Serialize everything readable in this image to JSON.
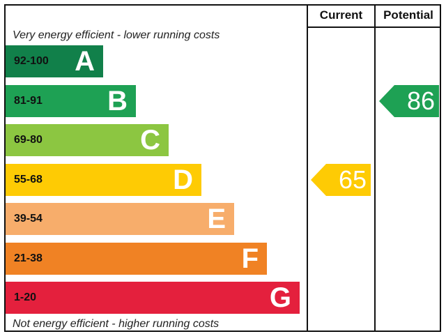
{
  "header": {
    "current_label": "Current",
    "potential_label": "Potential"
  },
  "captions": {
    "top": "Very energy efficient - lower running costs",
    "bottom": "Not energy efficient - higher running costs"
  },
  "bands": [
    {
      "range": "92-100",
      "letter": "A",
      "color": "#11804a"
    },
    {
      "range": "81-91",
      "letter": "B",
      "color": "#1ea154"
    },
    {
      "range": "69-80",
      "letter": "C",
      "color": "#8cc641"
    },
    {
      "range": "55-68",
      "letter": "D",
      "color": "#fecb04"
    },
    {
      "range": "39-54",
      "letter": "E",
      "color": "#f7ad6b"
    },
    {
      "range": "21-38",
      "letter": "F",
      "color": "#f08224"
    },
    {
      "range": "1-20",
      "letter": "G",
      "color": "#e4203d"
    }
  ],
  "current": {
    "value": "65",
    "band": "D",
    "color": "#fecb04"
  },
  "potential": {
    "value": "86",
    "band": "B",
    "color": "#1ea154"
  }
}
